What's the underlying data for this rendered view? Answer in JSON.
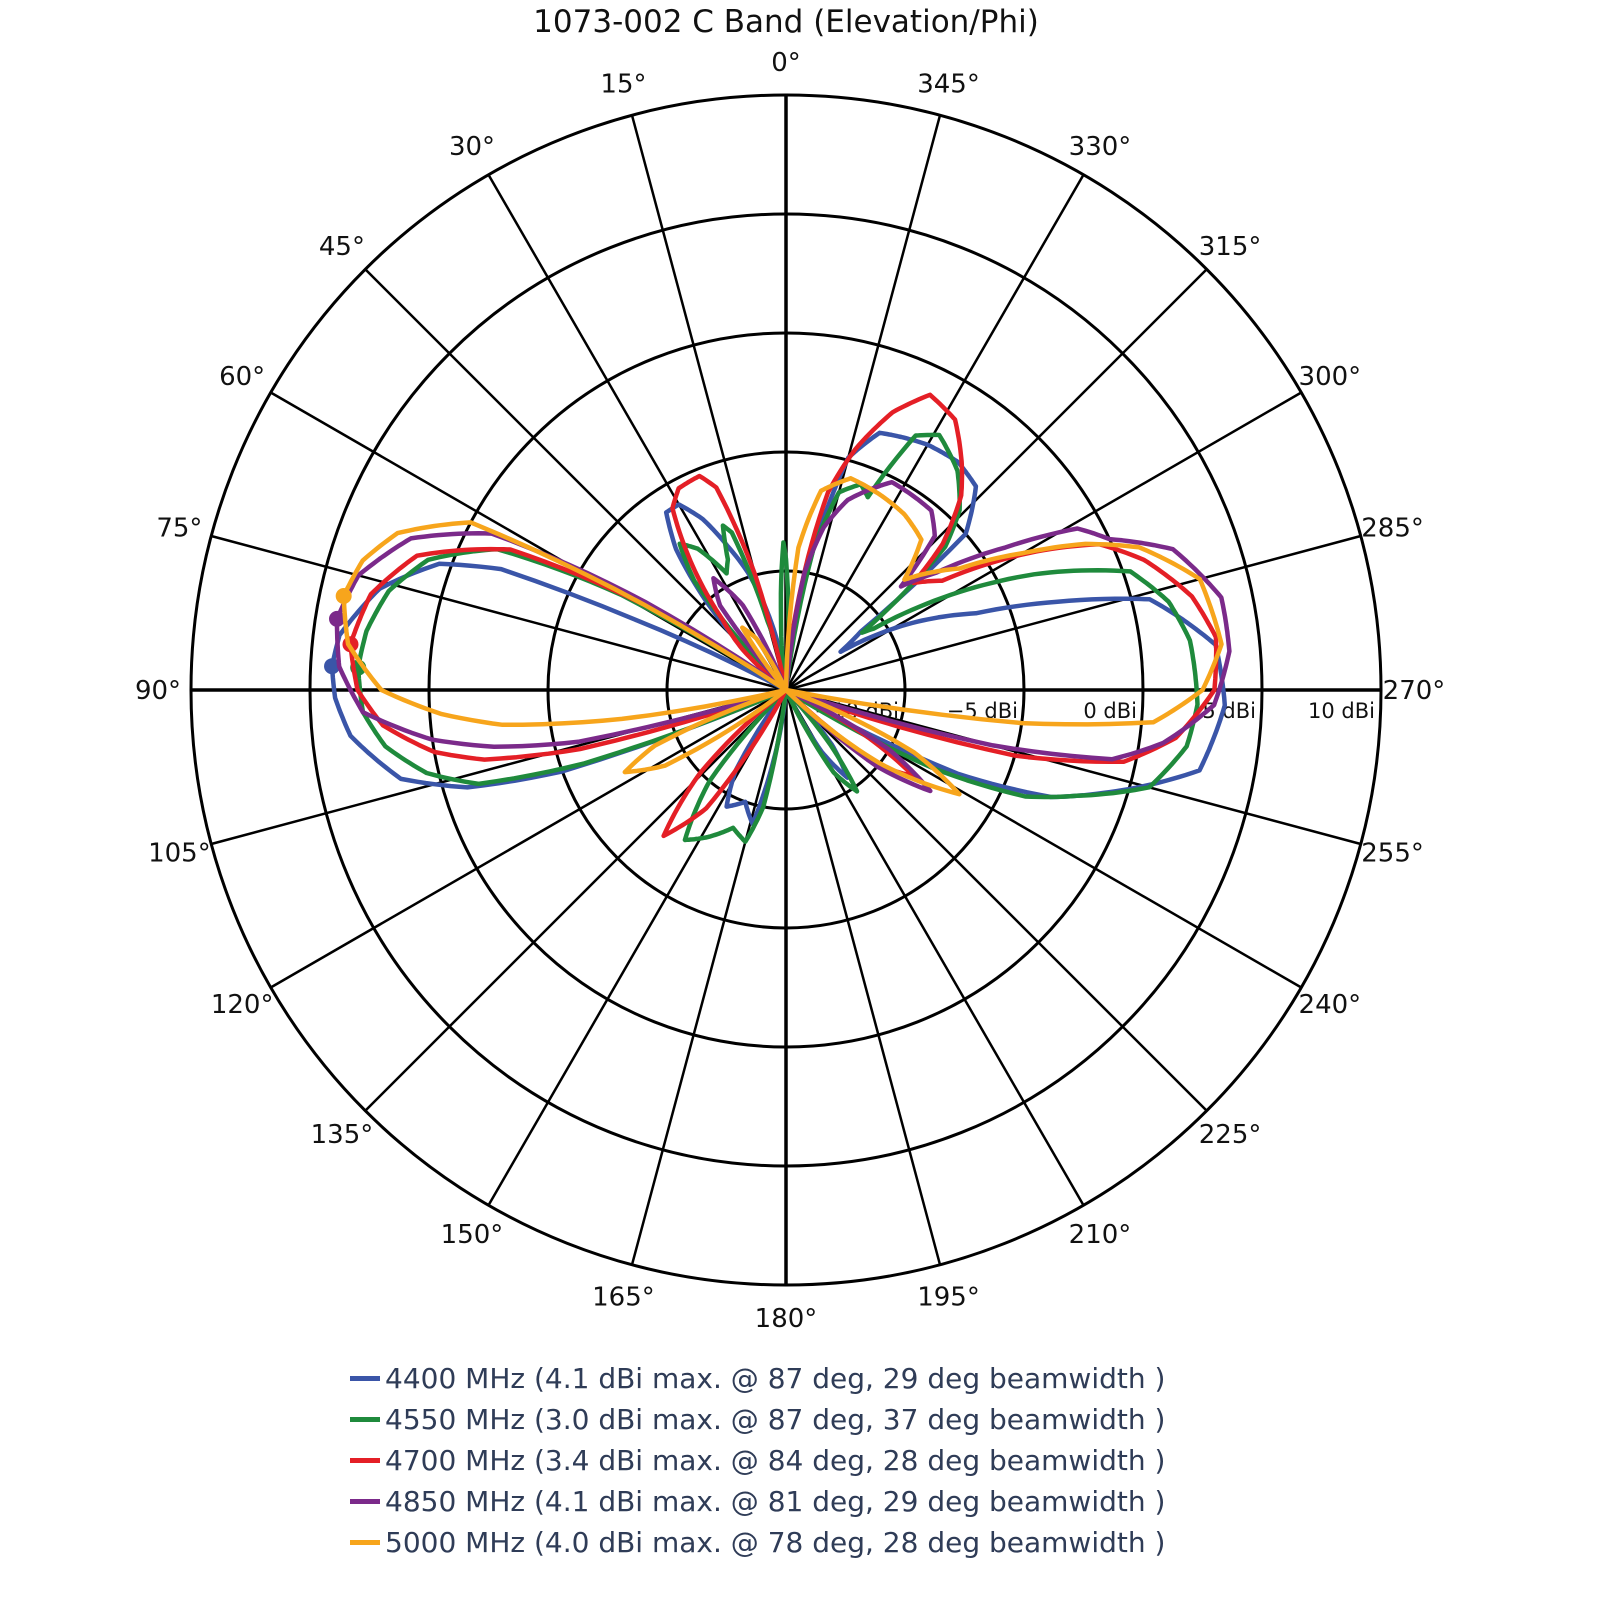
{
  "chart_data": {
    "type": "polar-line",
    "title": "1073-002 C Band (Elevation/Phi)",
    "angular_axis": {
      "direction": "counterclockwise",
      "zero_at": "top",
      "tick_labels": [
        "0°",
        "15°",
        "30°",
        "45°",
        "60°",
        "75°",
        "90°",
        "105°",
        "120°",
        "135°",
        "150°",
        "165°",
        "180°",
        "195°",
        "210°",
        "225°",
        "240°",
        "255°",
        "270°",
        "285°",
        "300°",
        "315°",
        "330°",
        "345°"
      ]
    },
    "radial_axis": {
      "unit": "dBi",
      "range": [
        -15,
        10
      ],
      "ticks": [
        -10,
        -5,
        0,
        5,
        10
      ],
      "tick_labels": [
        "−10 dBi",
        "−5 dBi",
        "0 dBi",
        "5 dBi",
        "10 dBi"
      ]
    },
    "grid": true,
    "legend_position": "bottom",
    "series": [
      {
        "name": "4400 MHz (4.1 dBi max. @ 87 deg, 29 deg beamwidth )",
        "color": "#3a55a8",
        "peak": {
          "gain": 4.1,
          "angle": 87
        },
        "points": [
          [
            0,
            -15
          ],
          [
            10,
            -13
          ],
          [
            15,
            -11
          ],
          [
            18,
            -9.8
          ],
          [
            22,
            -8.5
          ],
          [
            26,
            -7
          ],
          [
            30,
            -6
          ],
          [
            34,
            -6
          ],
          [
            38,
            -7.5
          ],
          [
            42,
            -10
          ],
          [
            46,
            -13
          ],
          [
            50,
            -15
          ],
          [
            62,
            -15
          ],
          [
            65,
            -8
          ],
          [
            67,
            -2
          ],
          [
            70,
            0.5
          ],
          [
            76,
            2.6
          ],
          [
            83,
            3.9
          ],
          [
            87,
            4.1
          ],
          [
            91,
            3.95
          ],
          [
            96,
            3.4
          ],
          [
            103,
            1.6
          ],
          [
            107,
            -1
          ],
          [
            110,
            -5
          ],
          [
            113,
            -15
          ],
          [
            143,
            -15
          ],
          [
            148,
            -11
          ],
          [
            153,
            -9.5
          ],
          [
            160,
            -10
          ],
          [
            166,
            -9.2
          ],
          [
            170,
            -12
          ],
          [
            175,
            -15
          ],
          [
            205,
            -15
          ],
          [
            210,
            -12
          ],
          [
            215,
            -10.5
          ],
          [
            220,
            -12
          ],
          [
            225,
            -15
          ],
          [
            240,
            -15
          ],
          [
            244,
            -7
          ],
          [
            248,
            -3
          ],
          [
            252,
            -1
          ],
          [
            259,
            2.7
          ],
          [
            268,
            3.45
          ],
          [
            276,
            3.15
          ],
          [
            284,
            0.75
          ],
          [
            288,
            -3
          ],
          [
            292,
            -6.4
          ],
          [
            298,
            -9
          ],
          [
            305,
            -12.2
          ],
          [
            308,
            -11
          ],
          [
            311,
            -5
          ],
          [
            317,
            -3.3
          ],
          [
            323,
            -3.0
          ],
          [
            330,
            -3.1
          ],
          [
            340,
            -3.5
          ],
          [
            345,
            -4.9
          ],
          [
            350,
            -10
          ],
          [
            355,
            -15
          ]
        ]
      },
      {
        "name": "4550 MHz (3.0 dBi max. @ 87 deg, 37 deg beamwidth )",
        "color": "#1f8a3c",
        "peak": {
          "gain": 3.0,
          "angle": 87
        },
        "points": [
          [
            0,
            -9.5
          ],
          [
            1,
            -8.8
          ],
          [
            4,
            -12
          ],
          [
            8,
            -15
          ],
          [
            15,
            -12
          ],
          [
            19,
            -8
          ],
          [
            21,
            -7.6
          ],
          [
            24,
            -9
          ],
          [
            27,
            -9.5
          ],
          [
            32,
            -8
          ],
          [
            36,
            -7.4
          ],
          [
            40,
            -9
          ],
          [
            46,
            -15
          ],
          [
            57,
            -15
          ],
          [
            60,
            -7
          ],
          [
            64,
            -1.5
          ],
          [
            70,
            1
          ],
          [
            76,
            2.2
          ],
          [
            82,
            2.8
          ],
          [
            87,
            3.0
          ],
          [
            93,
            2.8
          ],
          [
            98,
            2.0
          ],
          [
            103,
            0.5
          ],
          [
            107,
            -1.5
          ],
          [
            110,
            -6
          ],
          [
            113,
            -15
          ],
          [
            135,
            -15
          ],
          [
            140,
            -10
          ],
          [
            146,
            -7.4
          ],
          [
            152,
            -8
          ],
          [
            159,
            -8.8
          ],
          [
            165,
            -8.4
          ],
          [
            169,
            -10
          ],
          [
            173,
            -15
          ],
          [
            205,
            -15
          ],
          [
            210,
            -11
          ],
          [
            215,
            -9.8
          ],
          [
            219,
            -12
          ],
          [
            223,
            -15
          ],
          [
            238,
            -15
          ],
          [
            242,
            -8
          ],
          [
            246,
            -4
          ],
          [
            250,
            -2
          ],
          [
            255,
            0.8
          ],
          [
            262,
            2
          ],
          [
            268,
            2.3
          ],
          [
            277,
            2.1
          ],
          [
            283,
            1.5
          ],
          [
            289,
            0.3
          ],
          [
            295,
            -3.5
          ],
          [
            300,
            -7
          ],
          [
            305,
            -10.5
          ],
          [
            307,
            -11
          ],
          [
            309,
            -9
          ],
          [
            312,
            -6
          ],
          [
            316,
            -4.5
          ],
          [
            322,
            -3.3
          ],
          [
            329,
            -2.5
          ],
          [
            333,
            -3
          ],
          [
            337,
            -6.2
          ],
          [
            340,
            -5.8
          ],
          [
            345,
            -6.4
          ],
          [
            349,
            -9
          ],
          [
            353,
            -15
          ],
          [
            358,
            -12
          ]
        ]
      },
      {
        "name": "4700 MHz (3.4 dBi max. @ 84 deg, 28 deg beamwidth )",
        "color": "#e41f26",
        "peak": {
          "gain": 3.4,
          "angle": 84
        },
        "points": [
          [
            0,
            -15
          ],
          [
            12,
            -15
          ],
          [
            15,
            -10
          ],
          [
            19,
            -6
          ],
          [
            22,
            -5.3
          ],
          [
            28,
            -5.4
          ],
          [
            32,
            -6
          ],
          [
            36,
            -8
          ],
          [
            42,
            -11
          ],
          [
            47,
            -12.5
          ],
          [
            52,
            -15
          ],
          [
            56,
            -15
          ],
          [
            59,
            -8
          ],
          [
            63,
            -2
          ],
          [
            70,
            1.5
          ],
          [
            77,
            2.9
          ],
          [
            84,
            3.4
          ],
          [
            90,
            3.0
          ],
          [
            95,
            2.0
          ],
          [
            100,
            0
          ],
          [
            103,
            -2
          ],
          [
            106,
            -6
          ],
          [
            109,
            -15
          ],
          [
            128,
            -15
          ],
          [
            134,
            -10
          ],
          [
            140,
            -7
          ],
          [
            146,
            -9
          ],
          [
            152,
            -15
          ],
          [
            226,
            -15
          ],
          [
            231,
            -10
          ],
          [
            236,
            -8.5
          ],
          [
            240,
            -11
          ],
          [
            245,
            -15
          ],
          [
            250,
            -15
          ],
          [
            254,
            -5
          ],
          [
            258,
            -0.5
          ],
          [
            263,
            1.5
          ],
          [
            270,
            3
          ],
          [
            277,
            3.2
          ],
          [
            283,
            2.5
          ],
          [
            290,
            1.0
          ],
          [
            295,
            -0.5
          ],
          [
            299,
            -3
          ],
          [
            305,
            -7
          ],
          [
            310,
            -8
          ],
          [
            313,
            -6
          ],
          [
            318,
            -4
          ],
          [
            322,
            -3
          ],
          [
            328,
            -1.6
          ],
          [
            334,
            -1.2
          ],
          [
            339,
            -2.5
          ],
          [
            344,
            -4.5
          ],
          [
            348,
            -6.5
          ],
          [
            352,
            -11
          ],
          [
            356,
            -15
          ]
        ]
      },
      {
        "name": "4850 MHz (4.1 dBi max. @ 81 deg, 29 deg beamwidth )",
        "color": "#7b2a8a",
        "peak": {
          "gain": 4.1,
          "angle": 81
        },
        "points": [
          [
            0,
            -15
          ],
          [
            22,
            -15
          ],
          [
            27,
            -11
          ],
          [
            33,
            -9.4
          ],
          [
            38,
            -10.5
          ],
          [
            42,
            -15
          ],
          [
            55,
            -15
          ],
          [
            58,
            -8
          ],
          [
            62,
            -1
          ],
          [
            68,
            2
          ],
          [
            75,
            3.6
          ],
          [
            81,
            4.1
          ],
          [
            87,
            3.8
          ],
          [
            93,
            2.8
          ],
          [
            98,
            0
          ],
          [
            101,
            -2.5
          ],
          [
            104,
            -6
          ],
          [
            107,
            -15
          ],
          [
            225,
            -15
          ],
          [
            230,
            -10
          ],
          [
            235,
            -7.6
          ],
          [
            240,
            -10
          ],
          [
            245,
            -15
          ],
          [
            252,
            -15
          ],
          [
            255,
            -6
          ],
          [
            258,
            -1
          ],
          [
            262,
            1
          ],
          [
            268,
            3
          ],
          [
            275,
            3.7
          ],
          [
            282,
            3.7
          ],
          [
            290,
            2.3
          ],
          [
            295,
            0
          ],
          [
            299,
            -1
          ],
          [
            303,
            -4
          ],
          [
            308,
            -7
          ],
          [
            312,
            -8.5
          ],
          [
            316,
            -6
          ],
          [
            321,
            -5.3
          ],
          [
            333,
            -5.2
          ],
          [
            342,
            -6.6
          ],
          [
            347,
            -8
          ],
          [
            351,
            -10
          ],
          [
            355,
            -15
          ]
        ]
      },
      {
        "name": "5000 MHz (4.0 dBi max. @ 78 deg, 28 deg beamwidth )",
        "color": "#f7a51c",
        "peak": {
          "gain": 4.0,
          "angle": 78
        },
        "points": [
          [
            0,
            -15
          ],
          [
            25,
            -15
          ],
          [
            30,
            -12.5
          ],
          [
            35,
            -11.8
          ],
          [
            40,
            -15
          ],
          [
            57,
            -15
          ],
          [
            59,
            -8
          ],
          [
            62,
            0
          ],
          [
            68,
            2.6
          ],
          [
            73,
            3.6
          ],
          [
            78,
            4.0
          ],
          [
            84,
            3.5
          ],
          [
            90,
            2.0
          ],
          [
            94,
            -0.5
          ],
          [
            97,
            -3
          ],
          [
            100,
            -8
          ],
          [
            103,
            -15
          ],
          [
            108,
            -15
          ],
          [
            113,
            -9
          ],
          [
            117,
            -7.4
          ],
          [
            122,
            -9
          ],
          [
            128,
            -15
          ],
          [
            225,
            -15
          ],
          [
            232,
            -10
          ],
          [
            239,
            -6.5
          ],
          [
            244,
            -9
          ],
          [
            250,
            -15
          ],
          [
            259,
            -15
          ],
          [
            262,
            -5
          ],
          [
            265,
            0.5
          ],
          [
            270,
            2.5
          ],
          [
            276,
            3.4
          ],
          [
            285,
            3.0
          ],
          [
            292,
            1
          ],
          [
            296,
            -1
          ],
          [
            300,
            -3.5
          ],
          [
            305,
            -6.1
          ],
          [
            313,
            -8.2
          ],
          [
            318,
            -6.5
          ],
          [
            326,
            -6.1
          ],
          [
            334,
            -5.9
          ],
          [
            343,
            -5.7
          ],
          [
            350,
            -6.5
          ],
          [
            355,
            -9
          ],
          [
            359,
            -15
          ]
        ]
      }
    ]
  }
}
